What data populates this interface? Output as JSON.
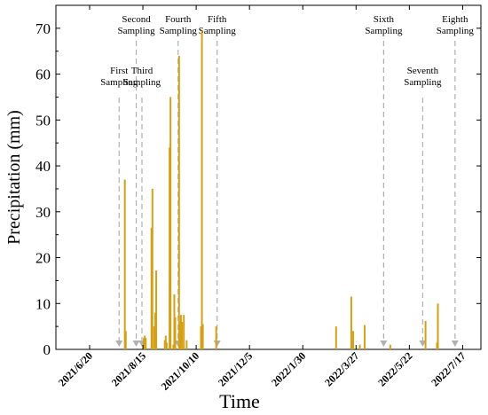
{
  "chart_data": {
    "type": "bar",
    "xlabel": "Time",
    "ylabel": "Precipitation (mm)",
    "ylim": [
      0,
      75
    ],
    "y_ticks": [
      "0",
      "10",
      "20",
      "30",
      "40",
      "50",
      "60",
      "70"
    ],
    "x_range": [
      "2021-06-20",
      "2022-07-25"
    ],
    "x_ticks": [
      {
        "label": "2021/6/20",
        "date": "2021-06-20"
      },
      {
        "label": "2021/8/15",
        "date": "2021-08-15"
      },
      {
        "label": "2021/10/10",
        "date": "2021-10-10"
      },
      {
        "label": "2021/12/5",
        "date": "2021-12-05"
      },
      {
        "label": "2022/1/30",
        "date": "2022-01-30"
      },
      {
        "label": "2022/3/27",
        "date": "2022-03-27"
      },
      {
        "label": "2022/5/22",
        "date": "2022-05-22"
      },
      {
        "label": "2022/7/17",
        "date": "2022-07-17"
      }
    ],
    "bar_color": "#d4a017",
    "points": [
      {
        "date": "2021-07-27",
        "value": 37
      },
      {
        "date": "2021-07-28",
        "value": 4
      },
      {
        "date": "2021-08-16",
        "value": 2.5
      },
      {
        "date": "2021-08-17",
        "value": 3
      },
      {
        "date": "2021-08-18",
        "value": 2.5
      },
      {
        "date": "2021-08-24",
        "value": 26.5
      },
      {
        "date": "2021-08-25",
        "value": 35
      },
      {
        "date": "2021-08-27",
        "value": 5
      },
      {
        "date": "2021-08-28",
        "value": 8
      },
      {
        "date": "2021-08-29",
        "value": 17.2
      },
      {
        "date": "2021-09-07",
        "value": 2
      },
      {
        "date": "2021-09-08",
        "value": 3
      },
      {
        "date": "2021-09-09",
        "value": 1.5
      },
      {
        "date": "2021-09-12",
        "value": 44
      },
      {
        "date": "2021-09-13",
        "value": 55
      },
      {
        "date": "2021-09-16",
        "value": 1
      },
      {
        "date": "2021-09-17",
        "value": 12
      },
      {
        "date": "2021-09-18",
        "value": 7
      },
      {
        "date": "2021-09-22",
        "value": 64
      },
      {
        "date": "2021-09-23",
        "value": 6
      },
      {
        "date": "2021-09-24",
        "value": 7.5
      },
      {
        "date": "2021-09-25",
        "value": 6
      },
      {
        "date": "2021-09-27",
        "value": 7.5
      },
      {
        "date": "2021-09-30",
        "value": 2
      },
      {
        "date": "2021-10-15",
        "value": 5
      },
      {
        "date": "2021-10-16",
        "value": 69.5
      },
      {
        "date": "2021-10-17",
        "value": 5.5
      },
      {
        "date": "2021-10-31",
        "value": 5
      },
      {
        "date": "2022-03-06",
        "value": 5
      },
      {
        "date": "2022-03-22",
        "value": 11.5
      },
      {
        "date": "2022-03-23",
        "value": 2
      },
      {
        "date": "2022-03-24",
        "value": 4
      },
      {
        "date": "2022-03-31",
        "value": 1
      },
      {
        "date": "2022-04-05",
        "value": 5.3
      },
      {
        "date": "2022-05-02",
        "value": 1
      },
      {
        "date": "2022-06-08",
        "value": 6.2
      },
      {
        "date": "2022-06-20",
        "value": 1.5
      },
      {
        "date": "2022-06-21",
        "value": 10
      }
    ],
    "samplings": [
      {
        "label_lines": [
          "First",
          "Sampling"
        ],
        "date": "2021-07-21",
        "label_level": "low"
      },
      {
        "label_lines": [
          "Second",
          "Sampling"
        ],
        "date": "2021-08-08",
        "label_level": "high"
      },
      {
        "label_lines": [
          "Third",
          "Sampling"
        ],
        "date": "2021-08-14",
        "label_level": "low"
      },
      {
        "label_lines": [
          "Fourth",
          "Sampling"
        ],
        "date": "2021-09-21",
        "label_level": "high"
      },
      {
        "label_lines": [
          "Fifth",
          "Sampling"
        ],
        "date": "2021-11-01",
        "label_level": "high"
      },
      {
        "label_lines": [
          "Sixth",
          "Sampling"
        ],
        "date": "2022-04-25",
        "label_level": "high"
      },
      {
        "label_lines": [
          "Seventh",
          "Sampling"
        ],
        "date": "2022-06-05",
        "label_level": "low"
      },
      {
        "label_lines": [
          "Eighth",
          "Sampling"
        ],
        "date": "2022-07-09",
        "label_level": "high"
      }
    ]
  }
}
